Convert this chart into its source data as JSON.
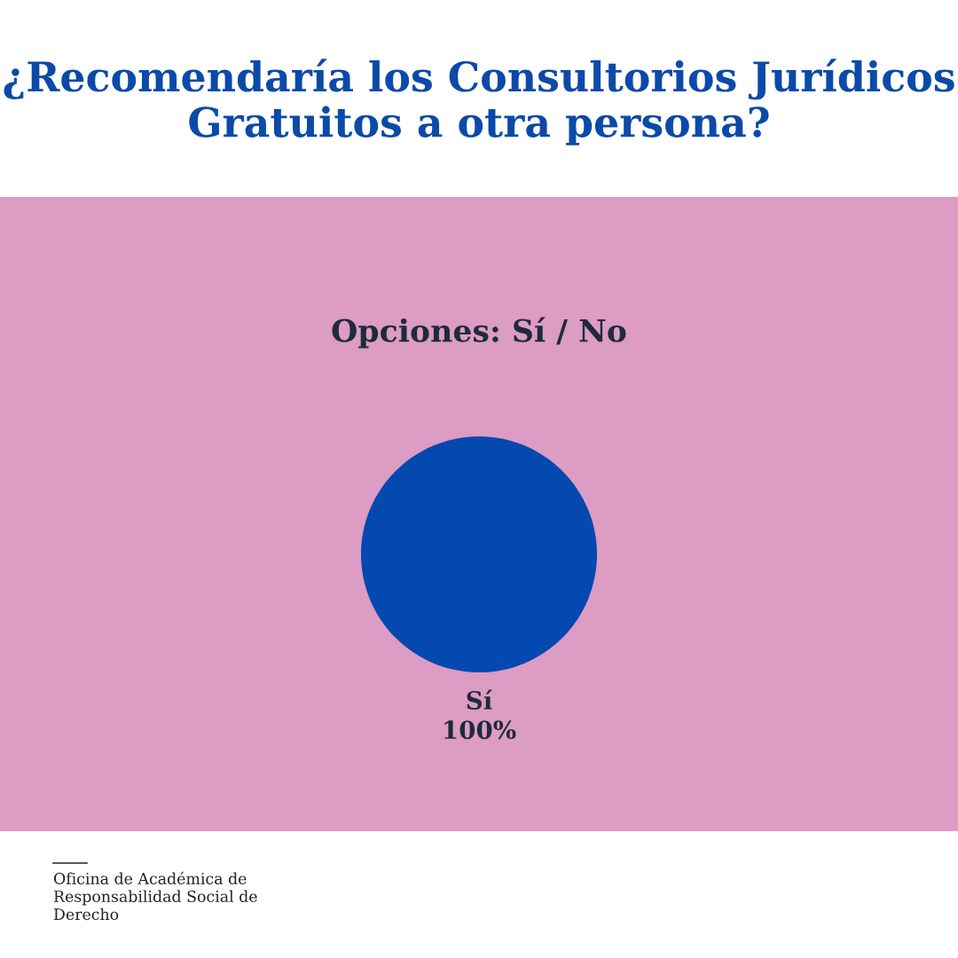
{
  "chart_data": {
    "type": "pie",
    "title": "¿Recomendaría los Consultorios Jurídicos Gratuitos a otra persona?",
    "subtitle": "Opciones: Sí / No",
    "categories": [
      "Sí"
    ],
    "values": [
      100
    ],
    "colors": [
      "#0349b0"
    ],
    "value_labels": [
      "100%"
    ],
    "annotations": [
      "Oficina de Académica de\nResponsabilidad Social de\nDerecho"
    ]
  }
}
